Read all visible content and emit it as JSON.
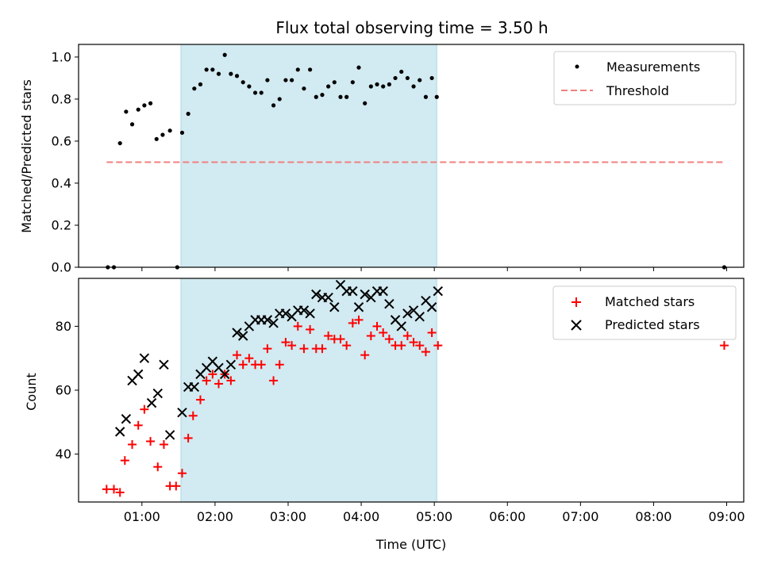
{
  "figure": {
    "title": "Flux total observing time = 3.50 h",
    "xlabel": "Time (UTC)",
    "xticks": [
      "01:00",
      "02:00",
      "03:00",
      "04:00",
      "05:00",
      "06:00",
      "07:00",
      "08:00",
      "09:00"
    ]
  },
  "chart_data": [
    {
      "type": "scatter",
      "ylabel": "Matched/Predicted stars",
      "ylim": [
        0,
        1.06
      ],
      "xlim": [
        "00:08",
        "09:14"
      ],
      "yticks": [
        "0.0",
        "0.2",
        "0.4",
        "0.6",
        "0.8",
        "1.0"
      ],
      "shaded_interval": [
        "01:32",
        "05:02"
      ],
      "shade_color": "#add8e6",
      "legend_position": "top-right",
      "series": [
        {
          "name": "Measurements",
          "color": "#000000",
          "marker": "dot",
          "points": [
            [
              "00:32",
              0.0
            ],
            [
              "00:37",
              0.0
            ],
            [
              "00:42",
              0.59
            ],
            [
              "00:47",
              0.74
            ],
            [
              "00:52",
              0.68
            ],
            [
              "00:57",
              0.75
            ],
            [
              "01:02",
              0.77
            ],
            [
              "01:07",
              0.78
            ],
            [
              "01:12",
              0.61
            ],
            [
              "01:17",
              0.63
            ],
            [
              "01:23",
              0.65
            ],
            [
              "01:29",
              0.0
            ],
            [
              "01:33",
              0.64
            ],
            [
              "01:38",
              0.73
            ],
            [
              "01:43",
              0.85
            ],
            [
              "01:48",
              0.87
            ],
            [
              "01:53",
              0.94
            ],
            [
              "01:58",
              0.94
            ],
            [
              "02:03",
              0.92
            ],
            [
              "02:08",
              1.01
            ],
            [
              "02:13",
              0.92
            ],
            [
              "02:18",
              0.91
            ],
            [
              "02:23",
              0.88
            ],
            [
              "02:28",
              0.86
            ],
            [
              "02:33",
              0.83
            ],
            [
              "02:38",
              0.83
            ],
            [
              "02:43",
              0.89
            ],
            [
              "02:48",
              0.77
            ],
            [
              "02:53",
              0.8
            ],
            [
              "02:58",
              0.89
            ],
            [
              "03:03",
              0.89
            ],
            [
              "03:08",
              0.94
            ],
            [
              "03:13",
              0.85
            ],
            [
              "03:18",
              0.94
            ],
            [
              "03:23",
              0.81
            ],
            [
              "03:28",
              0.82
            ],
            [
              "03:33",
              0.86
            ],
            [
              "03:38",
              0.88
            ],
            [
              "03:43",
              0.81
            ],
            [
              "03:48",
              0.81
            ],
            [
              "03:53",
              0.88
            ],
            [
              "03:58",
              0.95
            ],
            [
              "04:03",
              0.78
            ],
            [
              "04:08",
              0.86
            ],
            [
              "04:13",
              0.87
            ],
            [
              "04:18",
              0.86
            ],
            [
              "04:23",
              0.87
            ],
            [
              "04:28",
              0.9
            ],
            [
              "04:33",
              0.93
            ],
            [
              "04:38",
              0.9
            ],
            [
              "04:43",
              0.86
            ],
            [
              "04:48",
              0.89
            ],
            [
              "04:53",
              0.81
            ],
            [
              "04:58",
              0.9
            ],
            [
              "05:02",
              0.81
            ],
            [
              "08:58",
              0.0
            ]
          ]
        },
        {
          "name": "Threshold",
          "color": "#f08080",
          "style": "dashed",
          "x": [
            "00:31",
            "08:58"
          ],
          "y": [
            0.5,
            0.5
          ]
        }
      ]
    },
    {
      "type": "scatter",
      "ylabel": "Count",
      "ylim": [
        25,
        95
      ],
      "xlim": [
        "00:08",
        "09:14"
      ],
      "yticks": [
        "40",
        "60",
        "80"
      ],
      "shaded_interval": [
        "01:32",
        "05:02"
      ],
      "shade_color": "#add8e6",
      "legend_position": "top-right",
      "series": [
        {
          "name": "Matched stars",
          "color": "#ff0000",
          "marker": "plus",
          "points": [
            [
              "00:31",
              29
            ],
            [
              "00:37",
              29
            ],
            [
              "00:42",
              28
            ],
            [
              "00:46",
              38
            ],
            [
              "00:52",
              43
            ],
            [
              "00:57",
              49
            ],
            [
              "01:02",
              54
            ],
            [
              "01:07",
              44
            ],
            [
              "01:13",
              36
            ],
            [
              "01:18",
              43
            ],
            [
              "01:23",
              30
            ],
            [
              "01:28",
              30
            ],
            [
              "01:33",
              34
            ],
            [
              "01:38",
              45
            ],
            [
              "01:42",
              52
            ],
            [
              "01:48",
              57
            ],
            [
              "01:53",
              63
            ],
            [
              "01:58",
              65
            ],
            [
              "02:03",
              62
            ],
            [
              "02:08",
              65
            ],
            [
              "02:13",
              63
            ],
            [
              "02:18",
              71
            ],
            [
              "02:23",
              68
            ],
            [
              "02:28",
              70
            ],
            [
              "02:33",
              68
            ],
            [
              "02:38",
              68
            ],
            [
              "02:43",
              73
            ],
            [
              "02:48",
              63
            ],
            [
              "02:53",
              68
            ],
            [
              "02:58",
              75
            ],
            [
              "03:03",
              74
            ],
            [
              "03:08",
              80
            ],
            [
              "03:13",
              73
            ],
            [
              "03:18",
              79
            ],
            [
              "03:23",
              73
            ],
            [
              "03:28",
              73
            ],
            [
              "03:33",
              77
            ],
            [
              "03:38",
              76
            ],
            [
              "03:43",
              76
            ],
            [
              "03:48",
              74
            ],
            [
              "03:53",
              81
            ],
            [
              "03:58",
              82
            ],
            [
              "04:03",
              71
            ],
            [
              "04:08",
              77
            ],
            [
              "04:13",
              80
            ],
            [
              "04:18",
              78
            ],
            [
              "04:23",
              76
            ],
            [
              "04:28",
              74
            ],
            [
              "04:33",
              74
            ],
            [
              "04:38",
              77
            ],
            [
              "04:43",
              75
            ],
            [
              "04:48",
              74
            ],
            [
              "04:53",
              72
            ],
            [
              "04:58",
              78
            ],
            [
              "05:03",
              74
            ],
            [
              "08:58",
              74
            ]
          ]
        },
        {
          "name": "Predicted stars",
          "color": "#000000",
          "marker": "x",
          "points": [
            [
              "00:42",
              47
            ],
            [
              "00:47",
              51
            ],
            [
              "00:52",
              63
            ],
            [
              "00:57",
              65
            ],
            [
              "01:02",
              70
            ],
            [
              "01:08",
              56
            ],
            [
              "01:13",
              59
            ],
            [
              "01:18",
              68
            ],
            [
              "01:23",
              46
            ],
            [
              "01:33",
              53
            ],
            [
              "01:38",
              61
            ],
            [
              "01:43",
              61
            ],
            [
              "01:48",
              65
            ],
            [
              "01:53",
              67
            ],
            [
              "01:58",
              69
            ],
            [
              "02:03",
              67
            ],
            [
              "02:08",
              65
            ],
            [
              "02:13",
              68
            ],
            [
              "02:18",
              78
            ],
            [
              "02:23",
              77
            ],
            [
              "02:28",
              80
            ],
            [
              "02:33",
              82
            ],
            [
              "02:38",
              82
            ],
            [
              "02:43",
              82
            ],
            [
              "02:48",
              81
            ],
            [
              "02:53",
              84
            ],
            [
              "02:58",
              84
            ],
            [
              "03:03",
              83
            ],
            [
              "03:08",
              85
            ],
            [
              "03:13",
              85
            ],
            [
              "03:18",
              84
            ],
            [
              "03:23",
              90
            ],
            [
              "03:28",
              89
            ],
            [
              "03:33",
              89
            ],
            [
              "03:38",
              86
            ],
            [
              "03:43",
              93
            ],
            [
              "03:48",
              91
            ],
            [
              "03:53",
              91
            ],
            [
              "03:58",
              86
            ],
            [
              "04:03",
              90
            ],
            [
              "04:08",
              89
            ],
            [
              "04:13",
              91
            ],
            [
              "04:18",
              91
            ],
            [
              "04:23",
              87
            ],
            [
              "04:28",
              82
            ],
            [
              "04:33",
              80
            ],
            [
              "04:38",
              84
            ],
            [
              "04:43",
              85
            ],
            [
              "04:48",
              83
            ],
            [
              "04:53",
              88
            ],
            [
              "04:58",
              86
            ],
            [
              "05:03",
              91
            ]
          ]
        }
      ]
    }
  ]
}
